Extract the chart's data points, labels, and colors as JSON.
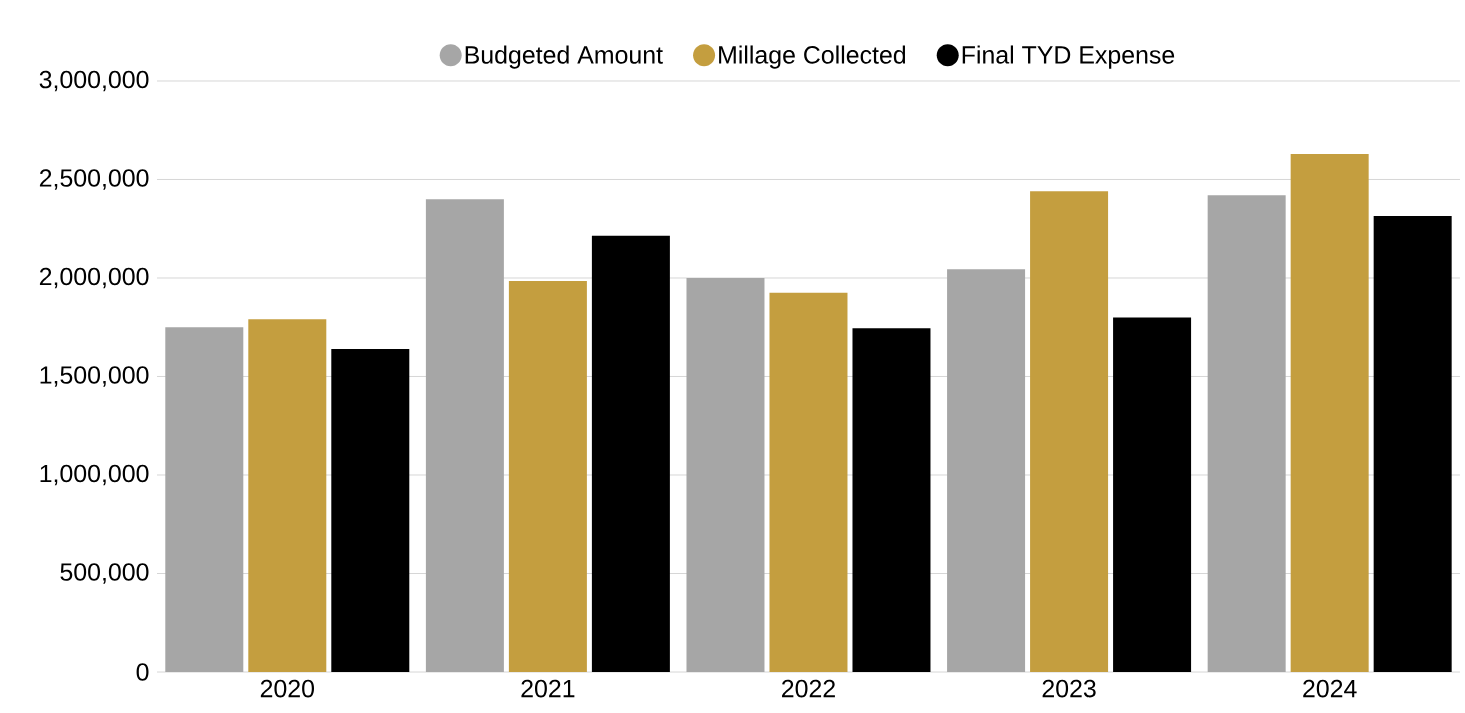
{
  "chart_data": {
    "type": "bar",
    "categories": [
      "2020",
      "2021",
      "2022",
      "2023",
      "2024"
    ],
    "series": [
      {
        "name": "Budgeted Amount",
        "color": "#a6a6a6",
        "values": [
          1750000,
          2400000,
          2000000,
          2045000,
          2420000
        ]
      },
      {
        "name": "Millage Collected",
        "color": "#c49e3f",
        "values": [
          1790000,
          1985000,
          1925000,
          2440000,
          2630000
        ]
      },
      {
        "name": "Final TYD Expense",
        "color": "#000000",
        "values": [
          1640000,
          2215000,
          1745000,
          1800000,
          2315000
        ]
      }
    ],
    "ylim": [
      0,
      3000000
    ],
    "yticks": [
      {
        "value": 0,
        "label": "0"
      },
      {
        "value": 500000,
        "label": "500,000"
      },
      {
        "value": 1000000,
        "label": "1,000,000"
      },
      {
        "value": 1500000,
        "label": "1,500,000"
      },
      {
        "value": 2000000,
        "label": "2,000,000"
      },
      {
        "value": 2500000,
        "label": "2,500,000"
      },
      {
        "value": 3000000,
        "label": "3,000,000"
      }
    ],
    "grid": "y",
    "legend": "top"
  }
}
